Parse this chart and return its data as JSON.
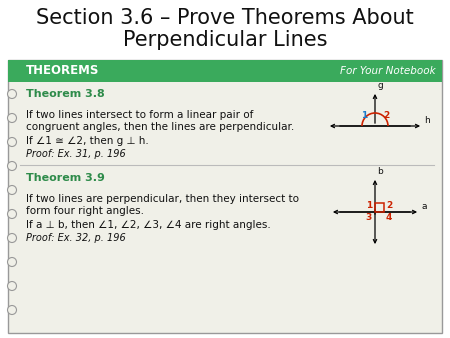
{
  "title_line1": "Section 3.6 – Prove Theorems About",
  "title_line2": "Perpendicular Lines",
  "title_fontsize": 15,
  "header_text": "THEOREMS",
  "header_right": "For Your Notebook",
  "teal_header": "#3aaa5c",
  "box_bg": "#f0f0e8",
  "box_border": "#999999",
  "theorem1_title": "Theorem 3.8",
  "theorem1_line1": "If two lines intersect to form a linear pair of",
  "theorem1_line2": "congruent angles, then the lines are perpendicular.",
  "theorem1_if": "If ∠1 ≅ ∠2, then g ⊥ h.",
  "theorem1_proof": "Proof: Ex. 31, p. 196",
  "theorem2_title": "Theorem 3.9",
  "theorem2_line1": "If two lines are perpendicular, then they intersect to",
  "theorem2_line2": "form four right angles.",
  "theorem2_if": "If a ⊥ b, then ∠1, ∠2, ∠3, ∠4 are right angles.",
  "theorem2_proof": "Proof: Ex. 32, p. 196",
  "green": "#2e8b4a",
  "red": "#cc2200",
  "blue": "#1a7acc",
  "dark_text": "#111111",
  "white": "#ffffff",
  "body_fontsize": 7.5,
  "small_fontsize": 7.0,
  "title_color": "#111111"
}
